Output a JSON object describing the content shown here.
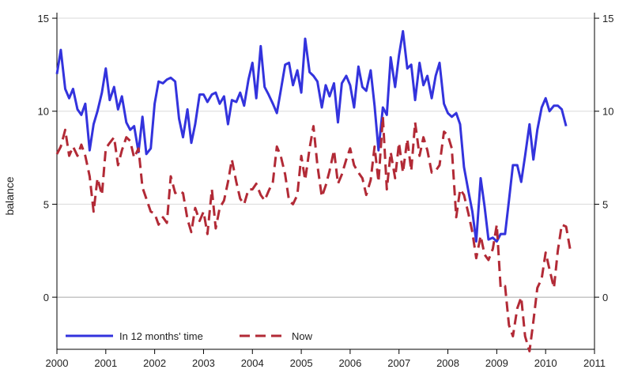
{
  "chart_data": {
    "type": "line",
    "ylabel": "balance",
    "xlim": [
      2000,
      2011
    ],
    "ylim": [
      -2.8,
      15.3
    ],
    "x_ticks": [
      "2000",
      "2001",
      "2002",
      "2003",
      "2004",
      "2005",
      "2006",
      "2007",
      "2008",
      "2009",
      "2010",
      "2011"
    ],
    "y_ticks": [
      "0",
      "5",
      "10",
      "15"
    ],
    "right_y_ticks": [
      "0",
      "5",
      "10",
      "15"
    ],
    "gridlines": [
      5,
      10,
      15
    ],
    "zero_line": 0,
    "legend_position": "bottom-left",
    "series": [
      {
        "name": "In 12 months' time",
        "color": "#3333dd",
        "style": "solid",
        "points": [
          [
            2000.0,
            12.0
          ],
          [
            2000.08,
            13.3
          ],
          [
            2000.17,
            11.2
          ],
          [
            2000.25,
            10.7
          ],
          [
            2000.33,
            11.2
          ],
          [
            2000.42,
            10.1
          ],
          [
            2000.5,
            9.8
          ],
          [
            2000.58,
            10.4
          ],
          [
            2000.67,
            7.9
          ],
          [
            2000.75,
            9.3
          ],
          [
            2000.83,
            10.0
          ],
          [
            2000.92,
            11.0
          ],
          [
            2001.0,
            12.3
          ],
          [
            2001.08,
            10.6
          ],
          [
            2001.17,
            11.3
          ],
          [
            2001.25,
            10.1
          ],
          [
            2001.33,
            10.8
          ],
          [
            2001.42,
            9.4
          ],
          [
            2001.5,
            9.0
          ],
          [
            2001.58,
            9.2
          ],
          [
            2001.67,
            7.8
          ],
          [
            2001.75,
            9.7
          ],
          [
            2001.83,
            7.7
          ],
          [
            2001.92,
            8.0
          ],
          [
            2002.0,
            10.4
          ],
          [
            2002.08,
            11.6
          ],
          [
            2002.17,
            11.5
          ],
          [
            2002.25,
            11.7
          ],
          [
            2002.33,
            11.8
          ],
          [
            2002.42,
            11.6
          ],
          [
            2002.5,
            9.6
          ],
          [
            2002.58,
            8.6
          ],
          [
            2002.67,
            10.1
          ],
          [
            2002.75,
            8.3
          ],
          [
            2002.83,
            9.3
          ],
          [
            2002.92,
            10.9
          ],
          [
            2003.0,
            10.9
          ],
          [
            2003.08,
            10.5
          ],
          [
            2003.17,
            10.9
          ],
          [
            2003.25,
            11.0
          ],
          [
            2003.33,
            10.4
          ],
          [
            2003.42,
            10.8
          ],
          [
            2003.5,
            9.3
          ],
          [
            2003.58,
            10.6
          ],
          [
            2003.67,
            10.5
          ],
          [
            2003.75,
            11.0
          ],
          [
            2003.83,
            10.3
          ],
          [
            2003.92,
            11.7
          ],
          [
            2004.0,
            12.6
          ],
          [
            2004.08,
            10.7
          ],
          [
            2004.17,
            13.5
          ],
          [
            2004.25,
            11.3
          ],
          [
            2004.33,
            10.9
          ],
          [
            2004.42,
            10.4
          ],
          [
            2004.5,
            9.9
          ],
          [
            2004.58,
            11.1
          ],
          [
            2004.67,
            12.5
          ],
          [
            2004.75,
            12.6
          ],
          [
            2004.83,
            11.4
          ],
          [
            2004.92,
            12.2
          ],
          [
            2005.0,
            11.0
          ],
          [
            2005.08,
            13.9
          ],
          [
            2005.17,
            12.1
          ],
          [
            2005.25,
            11.9
          ],
          [
            2005.33,
            11.6
          ],
          [
            2005.42,
            10.2
          ],
          [
            2005.5,
            11.4
          ],
          [
            2005.58,
            10.8
          ],
          [
            2005.67,
            11.5
          ],
          [
            2005.75,
            9.4
          ],
          [
            2005.83,
            11.5
          ],
          [
            2005.92,
            11.9
          ],
          [
            2006.0,
            11.4
          ],
          [
            2006.08,
            10.2
          ],
          [
            2006.17,
            12.4
          ],
          [
            2006.25,
            11.3
          ],
          [
            2006.33,
            11.1
          ],
          [
            2006.42,
            12.2
          ],
          [
            2006.5,
            10.3
          ],
          [
            2006.58,
            7.9
          ],
          [
            2006.67,
            10.2
          ],
          [
            2006.75,
            9.8
          ],
          [
            2006.83,
            12.9
          ],
          [
            2006.92,
            11.3
          ],
          [
            2007.0,
            13.0
          ],
          [
            2007.08,
            14.3
          ],
          [
            2007.17,
            12.3
          ],
          [
            2007.25,
            12.5
          ],
          [
            2007.33,
            10.6
          ],
          [
            2007.42,
            12.6
          ],
          [
            2007.5,
            11.4
          ],
          [
            2007.58,
            11.9
          ],
          [
            2007.67,
            10.7
          ],
          [
            2007.75,
            11.9
          ],
          [
            2007.83,
            12.6
          ],
          [
            2007.92,
            10.4
          ],
          [
            2008.0,
            9.9
          ],
          [
            2008.08,
            9.7
          ],
          [
            2008.17,
            9.9
          ],
          [
            2008.25,
            9.3
          ],
          [
            2008.33,
            7.0
          ],
          [
            2008.42,
            5.7
          ],
          [
            2008.5,
            4.6
          ],
          [
            2008.58,
            3.0
          ],
          [
            2008.67,
            6.4
          ],
          [
            2008.75,
            4.9
          ],
          [
            2008.83,
            3.1
          ],
          [
            2008.92,
            3.2
          ],
          [
            2009.0,
            3.0
          ],
          [
            2009.08,
            3.4
          ],
          [
            2009.17,
            3.4
          ],
          [
            2009.25,
            5.2
          ],
          [
            2009.33,
            7.1
          ],
          [
            2009.42,
            7.1
          ],
          [
            2009.5,
            6.2
          ],
          [
            2009.58,
            7.6
          ],
          [
            2009.67,
            9.3
          ],
          [
            2009.75,
            7.4
          ],
          [
            2009.83,
            9.0
          ],
          [
            2009.92,
            10.2
          ],
          [
            2010.0,
            10.7
          ],
          [
            2010.08,
            10.0
          ],
          [
            2010.17,
            10.3
          ],
          [
            2010.25,
            10.3
          ],
          [
            2010.33,
            10.1
          ],
          [
            2010.42,
            9.2
          ]
        ]
      },
      {
        "name": "Now",
        "color": "#b22a36",
        "style": "dashed",
        "points": [
          [
            2000.0,
            7.7
          ],
          [
            2000.08,
            8.1
          ],
          [
            2000.17,
            9.0
          ],
          [
            2000.25,
            7.6
          ],
          [
            2000.33,
            8.1
          ],
          [
            2000.42,
            7.6
          ],
          [
            2000.5,
            8.2
          ],
          [
            2000.58,
            7.6
          ],
          [
            2000.67,
            6.5
          ],
          [
            2000.75,
            4.6
          ],
          [
            2000.83,
            6.4
          ],
          [
            2000.92,
            5.5
          ],
          [
            2001.0,
            8.0
          ],
          [
            2001.08,
            8.3
          ],
          [
            2001.17,
            8.6
          ],
          [
            2001.25,
            7.1
          ],
          [
            2001.33,
            7.9
          ],
          [
            2001.42,
            8.6
          ],
          [
            2001.5,
            8.4
          ],
          [
            2001.58,
            7.5
          ],
          [
            2001.67,
            8.0
          ],
          [
            2001.75,
            5.9
          ],
          [
            2001.83,
            5.3
          ],
          [
            2001.92,
            4.6
          ],
          [
            2002.0,
            4.5
          ],
          [
            2002.08,
            3.9
          ],
          [
            2002.17,
            4.3
          ],
          [
            2002.25,
            4.0
          ],
          [
            2002.33,
            6.5
          ],
          [
            2002.42,
            5.6
          ],
          [
            2002.5,
            5.7
          ],
          [
            2002.58,
            5.6
          ],
          [
            2002.67,
            4.2
          ],
          [
            2002.75,
            3.5
          ],
          [
            2002.83,
            4.8
          ],
          [
            2002.92,
            4.1
          ],
          [
            2003.0,
            4.6
          ],
          [
            2003.08,
            3.4
          ],
          [
            2003.17,
            5.8
          ],
          [
            2003.25,
            3.7
          ],
          [
            2003.33,
            4.8
          ],
          [
            2003.42,
            5.2
          ],
          [
            2003.5,
            6.2
          ],
          [
            2003.58,
            7.4
          ],
          [
            2003.67,
            6.2
          ],
          [
            2003.75,
            5.3
          ],
          [
            2003.83,
            5.0
          ],
          [
            2003.92,
            5.8
          ],
          [
            2004.0,
            5.8
          ],
          [
            2004.08,
            6.1
          ],
          [
            2004.17,
            5.5
          ],
          [
            2004.25,
            5.2
          ],
          [
            2004.33,
            5.7
          ],
          [
            2004.42,
            6.2
          ],
          [
            2004.5,
            8.1
          ],
          [
            2004.58,
            7.6
          ],
          [
            2004.67,
            6.6
          ],
          [
            2004.75,
            5.2
          ],
          [
            2004.83,
            5.0
          ],
          [
            2004.92,
            5.5
          ],
          [
            2005.0,
            7.6
          ],
          [
            2005.08,
            6.3
          ],
          [
            2005.17,
            8.0
          ],
          [
            2005.25,
            9.2
          ],
          [
            2005.33,
            7.1
          ],
          [
            2005.42,
            5.4
          ],
          [
            2005.5,
            6.0
          ],
          [
            2005.58,
            6.8
          ],
          [
            2005.67,
            7.9
          ],
          [
            2005.75,
            6.1
          ],
          [
            2005.83,
            6.6
          ],
          [
            2005.92,
            7.4
          ],
          [
            2006.0,
            8.0
          ],
          [
            2006.08,
            7.1
          ],
          [
            2006.17,
            6.7
          ],
          [
            2006.25,
            6.4
          ],
          [
            2006.33,
            5.5
          ],
          [
            2006.42,
            6.3
          ],
          [
            2006.5,
            8.1
          ],
          [
            2006.58,
            6.2
          ],
          [
            2006.67,
            9.7
          ],
          [
            2006.75,
            5.8
          ],
          [
            2006.83,
            7.8
          ],
          [
            2006.92,
            6.4
          ],
          [
            2007.0,
            8.3
          ],
          [
            2007.08,
            6.7
          ],
          [
            2007.17,
            8.5
          ],
          [
            2007.25,
            6.8
          ],
          [
            2007.33,
            9.4
          ],
          [
            2007.42,
            7.6
          ],
          [
            2007.5,
            8.6
          ],
          [
            2007.58,
            7.9
          ],
          [
            2007.67,
            6.7
          ],
          [
            2007.75,
            6.8
          ],
          [
            2007.83,
            7.1
          ],
          [
            2007.92,
            8.9
          ],
          [
            2008.0,
            8.7
          ],
          [
            2008.08,
            8.0
          ],
          [
            2008.17,
            4.3
          ],
          [
            2008.25,
            5.8
          ],
          [
            2008.33,
            5.5
          ],
          [
            2008.42,
            4.5
          ],
          [
            2008.5,
            3.5
          ],
          [
            2008.58,
            2.1
          ],
          [
            2008.67,
            3.3
          ],
          [
            2008.75,
            2.3
          ],
          [
            2008.83,
            2.0
          ],
          [
            2008.92,
            2.6
          ],
          [
            2009.0,
            3.9
          ],
          [
            2009.08,
            0.5
          ],
          [
            2009.17,
            0.6
          ],
          [
            2009.25,
            -1.5
          ],
          [
            2009.33,
            -2.1
          ],
          [
            2009.42,
            -0.6
          ],
          [
            2009.5,
            0.0
          ],
          [
            2009.58,
            -2.1
          ],
          [
            2009.67,
            -2.9
          ],
          [
            2009.75,
            -1.3
          ],
          [
            2009.83,
            0.5
          ],
          [
            2009.92,
            1.0
          ],
          [
            2010.0,
            2.4
          ],
          [
            2010.08,
            1.5
          ],
          [
            2010.17,
            0.5
          ],
          [
            2010.25,
            2.5
          ],
          [
            2010.33,
            3.9
          ],
          [
            2010.42,
            3.8
          ],
          [
            2010.5,
            2.6
          ]
        ]
      }
    ]
  },
  "colors": {
    "grid": "#d9d9d9",
    "zero_line": "#a6a6a6",
    "axis": "#000000",
    "background": "#ffffff"
  }
}
